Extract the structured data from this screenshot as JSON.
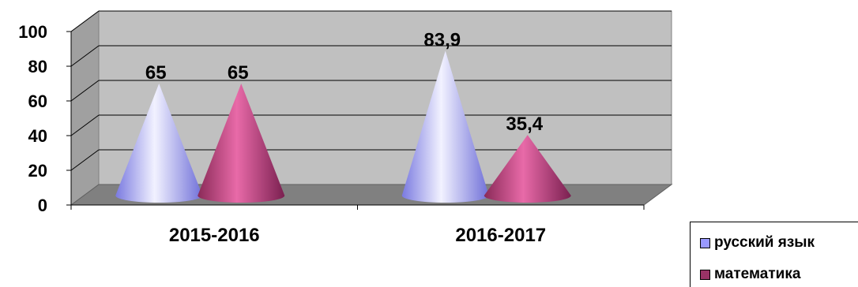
{
  "chart_data": {
    "type": "bar",
    "subtype": "3d-cone",
    "categories": [
      "2015-2016",
      "2016-2017"
    ],
    "series": [
      {
        "name": "русский язык",
        "values": [
          65,
          83.9
        ],
        "labels": [
          "65",
          "83,9"
        ],
        "color": "#9999ff"
      },
      {
        "name": "математика",
        "values": [
          65,
          35.4
        ],
        "labels": [
          "65",
          "35,4"
        ],
        "color": "#993366"
      }
    ],
    "ylim": [
      0,
      100
    ],
    "yticks": [
      "0",
      "20",
      "40",
      "60",
      "80",
      "100"
    ],
    "grid": true,
    "wall_color": "#c0c0c0",
    "legend_position": "bottom-right"
  }
}
